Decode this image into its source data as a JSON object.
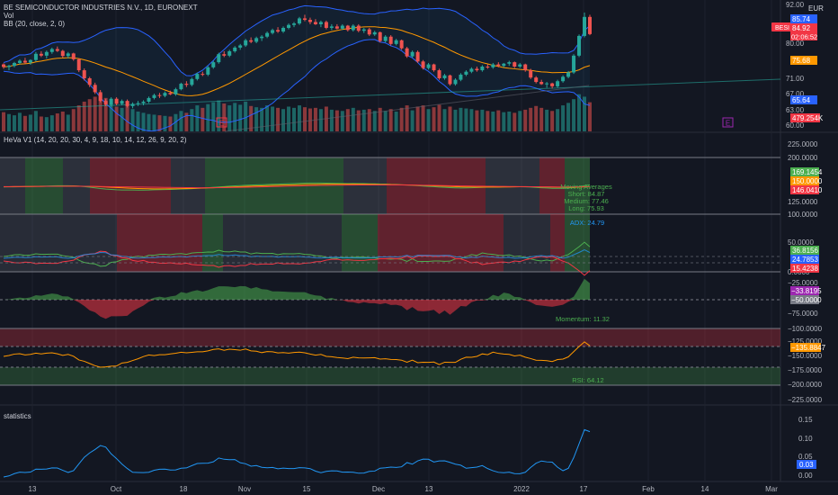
{
  "header": {
    "title": "BE SEMICONDUCTOR INDUSTRIES N.V., 1D, EURONEXT",
    "vol_label": "Vol",
    "bb_label": "BB (20, close, 2, 0)",
    "currency": "EUR"
  },
  "price_panel": {
    "ticks": [
      "92.00",
      "80.00",
      "71.00",
      "67.00",
      "63.00",
      "60.00"
    ],
    "badges": [
      {
        "text": "85.74",
        "color": "#2962ff"
      },
      {
        "text": "84.92",
        "color": "#f23645"
      },
      {
        "text": "02:06:52",
        "color": "#f23645"
      },
      {
        "text": "75.68",
        "color": "#ff9800"
      },
      {
        "text": "65.64",
        "color": "#2962ff"
      },
      {
        "text": "479.254K",
        "color": "#f23645"
      }
    ],
    "symbol_tag": "BESI",
    "earnings_marks": [
      "E",
      "E"
    ]
  },
  "heva_panel": {
    "title": "HeVa V1 (14, 20, 20, 30, 4, 9, 18, 10, 14, 12, 26, 9, 20, 2)",
    "ticks": [
      "225.0000",
      "200.0000",
      "125.0000",
      "100.0000",
      "50.0000",
      "0.0000",
      "−25.0000",
      "−75.0000",
      "−100.0000",
      "−125.0000",
      "−150.0000",
      "−175.0000",
      "−200.0000",
      "−225.0000"
    ],
    "badges": [
      {
        "text": "169.1454",
        "color": "#4caf50"
      },
      {
        "text": "150.0000",
        "color": "#ff9800"
      },
      {
        "text": "146.0410",
        "color": "#f23645"
      },
      {
        "text": "36.8156",
        "color": "#4caf50"
      },
      {
        "text": "24.7853",
        "color": "#2962ff"
      },
      {
        "text": "15.4238",
        "color": "#f23645"
      },
      {
        "text": "−33.8195",
        "color": "#9c27b0"
      },
      {
        "text": "−50.0000",
        "color": "#787b86"
      },
      {
        "text": "−135.8847",
        "color": "#ff9800"
      }
    ],
    "ma_text": [
      "Moving Averages",
      "Short: 84.87",
      "Medium: 77.46",
      "Long: 75.93"
    ],
    "adx_text": "ADX: 24.79",
    "momentum_text": "Momentum: 11.32",
    "rsi_text": "RSI: 64.12"
  },
  "stats_panel": {
    "title": "statistics",
    "ticks": [
      "0.15",
      "0.10",
      "0.05",
      "0.00"
    ],
    "badge": {
      "text": "0.03",
      "color": "#2962ff"
    }
  },
  "time_axis": {
    "labels": [
      "13",
      "Oct",
      "18",
      "Nov",
      "15",
      "Dec",
      "13",
      "2022",
      "17",
      "Feb",
      "14",
      "Mar"
    ]
  },
  "chart_data": {
    "type": "candlestick",
    "symbol": "BESI",
    "exchange": "EURONEXT",
    "interval": "1D",
    "ylim": [
      59,
      93
    ],
    "ohlc": [
      [
        76.6,
        76.9,
        75.4,
        75.9
      ],
      [
        75.9,
        76.5,
        75.0,
        76.2
      ],
      [
        76.2,
        77.3,
        75.8,
        77.0
      ],
      [
        77.0,
        78.0,
        76.6,
        77.6
      ],
      [
        77.6,
        78.4,
        76.8,
        77.1
      ],
      [
        77.1,
        78.0,
        76.5,
        77.8
      ],
      [
        77.8,
        80.0,
        77.4,
        79.5
      ],
      [
        79.5,
        80.2,
        78.6,
        79.0
      ],
      [
        79.0,
        80.4,
        78.2,
        80.0
      ],
      [
        80.0,
        81.2,
        79.5,
        80.8
      ],
      [
        80.8,
        81.5,
        80.0,
        80.3
      ],
      [
        80.3,
        80.6,
        78.4,
        78.9
      ],
      [
        78.9,
        80.0,
        78.3,
        79.6
      ],
      [
        79.6,
        79.8,
        77.6,
        78.0
      ],
      [
        78.0,
        78.3,
        74.5,
        75.0
      ],
      [
        75.0,
        75.5,
        72.2,
        72.8
      ],
      [
        72.8,
        73.2,
        70.4,
        71.0
      ],
      [
        71.0,
        71.6,
        68.5,
        69.0
      ],
      [
        69.0,
        69.6,
        66.2,
        66.6
      ],
      [
        66.6,
        67.2,
        65.2,
        65.6
      ],
      [
        65.6,
        67.6,
        65.0,
        67.2
      ],
      [
        67.2,
        67.6,
        65.4,
        65.8
      ],
      [
        65.8,
        67.0,
        65.4,
        66.6
      ],
      [
        66.6,
        67.0,
        64.8,
        65.2
      ],
      [
        65.2,
        66.2,
        64.6,
        65.8
      ],
      [
        65.8,
        66.6,
        65.2,
        66.0
      ],
      [
        66.0,
        66.8,
        65.4,
        66.4
      ],
      [
        66.4,
        67.8,
        66.0,
        67.4
      ],
      [
        67.4,
        68.6,
        67.0,
        68.2
      ],
      [
        68.2,
        68.8,
        67.4,
        68.0
      ],
      [
        68.0,
        69.2,
        67.6,
        68.8
      ],
      [
        68.8,
        69.4,
        68.2,
        68.4
      ],
      [
        68.4,
        70.2,
        68.0,
        69.8
      ],
      [
        69.8,
        71.6,
        69.5,
        71.3
      ],
      [
        71.3,
        72.0,
        70.4,
        71.0
      ],
      [
        71.0,
        73.0,
        70.6,
        72.6
      ],
      [
        72.6,
        74.4,
        72.2,
        74.0
      ],
      [
        74.0,
        74.6,
        73.4,
        73.8
      ],
      [
        73.8,
        76.2,
        73.4,
        75.8
      ],
      [
        75.8,
        77.6,
        75.4,
        77.2
      ],
      [
        77.2,
        79.8,
        76.8,
        79.4
      ],
      [
        79.4,
        80.2,
        78.6,
        79.0
      ],
      [
        79.0,
        80.6,
        78.6,
        80.2
      ],
      [
        80.2,
        81.6,
        79.8,
        81.2
      ],
      [
        81.2,
        82.2,
        80.6,
        81.8
      ],
      [
        81.8,
        83.6,
        81.4,
        83.2
      ],
      [
        83.2,
        84.0,
        82.4,
        82.8
      ],
      [
        82.8,
        84.2,
        82.4,
        83.8
      ],
      [
        83.8,
        84.6,
        83.0,
        84.2
      ],
      [
        84.2,
        85.6,
        83.8,
        85.2
      ],
      [
        85.2,
        86.4,
        84.8,
        86.0
      ],
      [
        86.0,
        86.8,
        85.2,
        85.6
      ],
      [
        85.6,
        87.0,
        85.2,
        86.6
      ],
      [
        86.6,
        87.8,
        86.2,
        87.4
      ],
      [
        87.4,
        88.2,
        86.8,
        87.8
      ],
      [
        87.8,
        89.6,
        87.4,
        89.2
      ],
      [
        89.2,
        90.2,
        88.4,
        88.8
      ],
      [
        88.8,
        89.4,
        87.6,
        88.2
      ],
      [
        88.2,
        89.0,
        87.4,
        87.6
      ],
      [
        87.6,
        88.6,
        86.8,
        88.2
      ],
      [
        88.2,
        88.6,
        86.2,
        86.6
      ],
      [
        86.6,
        87.6,
        86.0,
        87.0
      ],
      [
        87.0,
        87.6,
        86.2,
        86.4
      ],
      [
        86.4,
        87.6,
        86.0,
        87.2
      ],
      [
        87.2,
        87.4,
        85.6,
        86.0
      ],
      [
        86.0,
        87.6,
        85.6,
        87.2
      ],
      [
        87.2,
        87.6,
        85.4,
        85.8
      ],
      [
        85.8,
        86.6,
        85.2,
        86.2
      ],
      [
        86.2,
        86.6,
        84.4,
        84.8
      ],
      [
        84.8,
        85.8,
        84.4,
        85.4
      ],
      [
        85.4,
        85.6,
        82.6,
        83.0
      ],
      [
        83.0,
        84.6,
        82.6,
        84.2
      ],
      [
        84.2,
        84.6,
        81.8,
        82.2
      ],
      [
        82.2,
        83.6,
        81.8,
        83.2
      ],
      [
        83.2,
        83.4,
        80.6,
        81.0
      ],
      [
        81.0,
        81.4,
        78.4,
        78.8
      ],
      [
        78.8,
        80.4,
        78.4,
        80.0
      ],
      [
        80.0,
        80.4,
        77.0,
        77.4
      ],
      [
        77.4,
        77.8,
        75.2,
        75.6
      ],
      [
        75.6,
        77.0,
        75.2,
        76.6
      ],
      [
        76.6,
        76.8,
        74.6,
        75.0
      ],
      [
        75.0,
        75.4,
        72.4,
        72.8
      ],
      [
        72.8,
        74.0,
        72.4,
        73.6
      ],
      [
        73.6,
        73.8,
        70.8,
        71.2
      ],
      [
        71.2,
        72.8,
        70.8,
        72.4
      ],
      [
        72.4,
        74.2,
        72.0,
        73.8
      ],
      [
        73.8,
        75.0,
        73.4,
        74.6
      ],
      [
        74.6,
        75.8,
        74.2,
        75.4
      ],
      [
        75.4,
        76.0,
        74.6,
        75.0
      ],
      [
        75.0,
        76.4,
        74.6,
        76.0
      ],
      [
        76.0,
        76.6,
        75.4,
        75.8
      ],
      [
        75.8,
        77.0,
        75.4,
        76.6
      ],
      [
        76.6,
        77.2,
        75.8,
        76.2
      ],
      [
        76.2,
        77.0,
        75.8,
        76.8
      ],
      [
        76.8,
        77.6,
        76.2,
        77.2
      ],
      [
        77.2,
        77.4,
        75.6,
        76.0
      ],
      [
        76.0,
        77.0,
        75.6,
        76.6
      ],
      [
        76.6,
        76.8,
        74.6,
        75.0
      ],
      [
        75.0,
        75.4,
        72.6,
        73.0
      ],
      [
        73.0,
        73.4,
        71.4,
        71.8
      ],
      [
        71.8,
        72.4,
        71.0,
        71.2
      ],
      [
        71.2,
        71.8,
        70.2,
        71.4
      ],
      [
        71.4,
        71.6,
        70.0,
        70.6
      ],
      [
        70.6,
        72.4,
        70.2,
        72.0
      ],
      [
        72.0,
        73.6,
        71.6,
        73.2
      ],
      [
        73.2,
        74.8,
        72.8,
        74.4
      ],
      [
        74.4,
        79.4,
        74.0,
        79.0
      ],
      [
        79.0,
        84.8,
        78.6,
        84.4
      ],
      [
        84.4,
        90.8,
        84.0,
        89.6
      ],
      [
        89.6,
        90.2,
        84.6,
        84.9
      ]
    ],
    "volume": [
      310,
      280,
      260,
      300,
      250,
      270,
      330,
      240,
      230,
      260,
      290,
      320,
      270,
      360,
      420,
      480,
      520,
      560,
      610,
      540,
      450,
      400,
      380,
      420,
      360,
      320,
      300,
      280,
      270,
      260,
      250,
      240,
      280,
      330,
      300,
      360,
      420,
      380,
      440,
      470,
      500,
      450,
      420,
      460,
      430,
      480,
      410,
      390,
      380,
      420,
      400,
      380,
      360,
      400,
      380,
      420,
      390,
      370,
      380,
      360,
      400,
      350,
      340,
      330,
      360,
      380,
      340,
      350,
      360,
      330,
      380,
      330,
      360,
      320,
      380,
      420,
      340,
      400,
      420,
      360,
      390,
      430,
      360,
      400,
      350,
      380,
      370,
      360,
      340,
      350,
      330,
      320,
      340,
      310,
      320,
      300,
      330,
      350,
      380,
      410,
      380,
      350,
      330,
      360,
      420,
      460,
      520,
      600,
      560,
      470
    ]
  }
}
